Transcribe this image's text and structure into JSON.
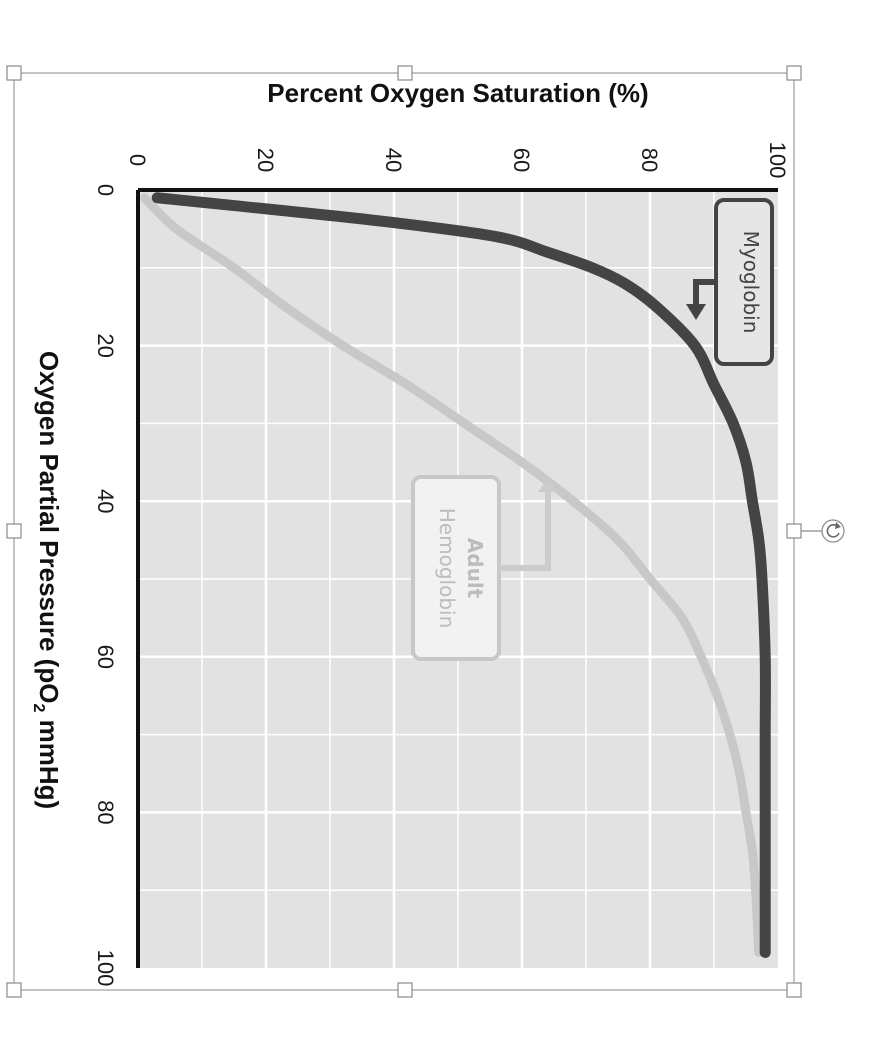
{
  "chart_data": {
    "type": "line",
    "orientation": "rotated-90-clockwise",
    "xlabel_main": "Oxygen Partial Pressure (pO",
    "xlabel_sub": "2",
    "xlabel_tail": " mmHg)",
    "ylabel": "Percent Oxygen Saturation (%)",
    "xlim": [
      0,
      100
    ],
    "ylim": [
      0,
      100
    ],
    "x_ticks": [
      "0",
      "20",
      "40",
      "60",
      "80",
      "100"
    ],
    "y_ticks": [
      "0",
      "20",
      "40",
      "60",
      "80",
      "100"
    ],
    "grid": true,
    "series": [
      {
        "name": "Myoglobin",
        "color": "#444444",
        "points": [
          [
            1,
            3
          ],
          [
            2,
            15
          ],
          [
            4,
            38
          ],
          [
            6,
            56
          ],
          [
            8,
            64
          ],
          [
            10,
            71
          ],
          [
            12,
            76
          ],
          [
            15,
            81
          ],
          [
            20,
            87
          ],
          [
            25,
            90
          ],
          [
            30,
            93
          ],
          [
            35,
            95
          ],
          [
            40,
            96
          ],
          [
            45,
            97
          ],
          [
            50,
            97.5
          ],
          [
            60,
            98
          ],
          [
            70,
            98
          ],
          [
            80,
            98
          ],
          [
            90,
            98
          ],
          [
            98,
            98
          ]
        ]
      },
      {
        "name": "Adult Hemoglobin",
        "name_lines": [
          "Adult",
          "Hemoglobin"
        ],
        "color": "#c8c8c8",
        "points": [
          [
            1,
            1
          ],
          [
            5,
            6
          ],
          [
            10,
            15
          ],
          [
            15,
            23
          ],
          [
            20,
            32
          ],
          [
            25,
            42
          ],
          [
            30,
            51
          ],
          [
            35,
            60
          ],
          [
            40,
            68
          ],
          [
            45,
            75
          ],
          [
            50,
            80
          ],
          [
            55,
            85
          ],
          [
            60,
            88
          ],
          [
            65,
            90.5
          ],
          [
            70,
            92.5
          ],
          [
            75,
            94
          ],
          [
            80,
            95
          ],
          [
            85,
            96
          ],
          [
            90,
            96.5
          ],
          [
            98,
            97
          ]
        ]
      }
    ]
  },
  "colors": {
    "plot_background": "#e2e2e2",
    "grid": "#ffffff",
    "axis": "#111111"
  },
  "ui": {
    "selection_handles": [
      "top-left",
      "top-center",
      "top-right",
      "middle-left",
      "middle-right",
      "bottom-left",
      "bottom-center",
      "bottom-right"
    ],
    "rotate_handle_icon": "rotate-icon"
  }
}
